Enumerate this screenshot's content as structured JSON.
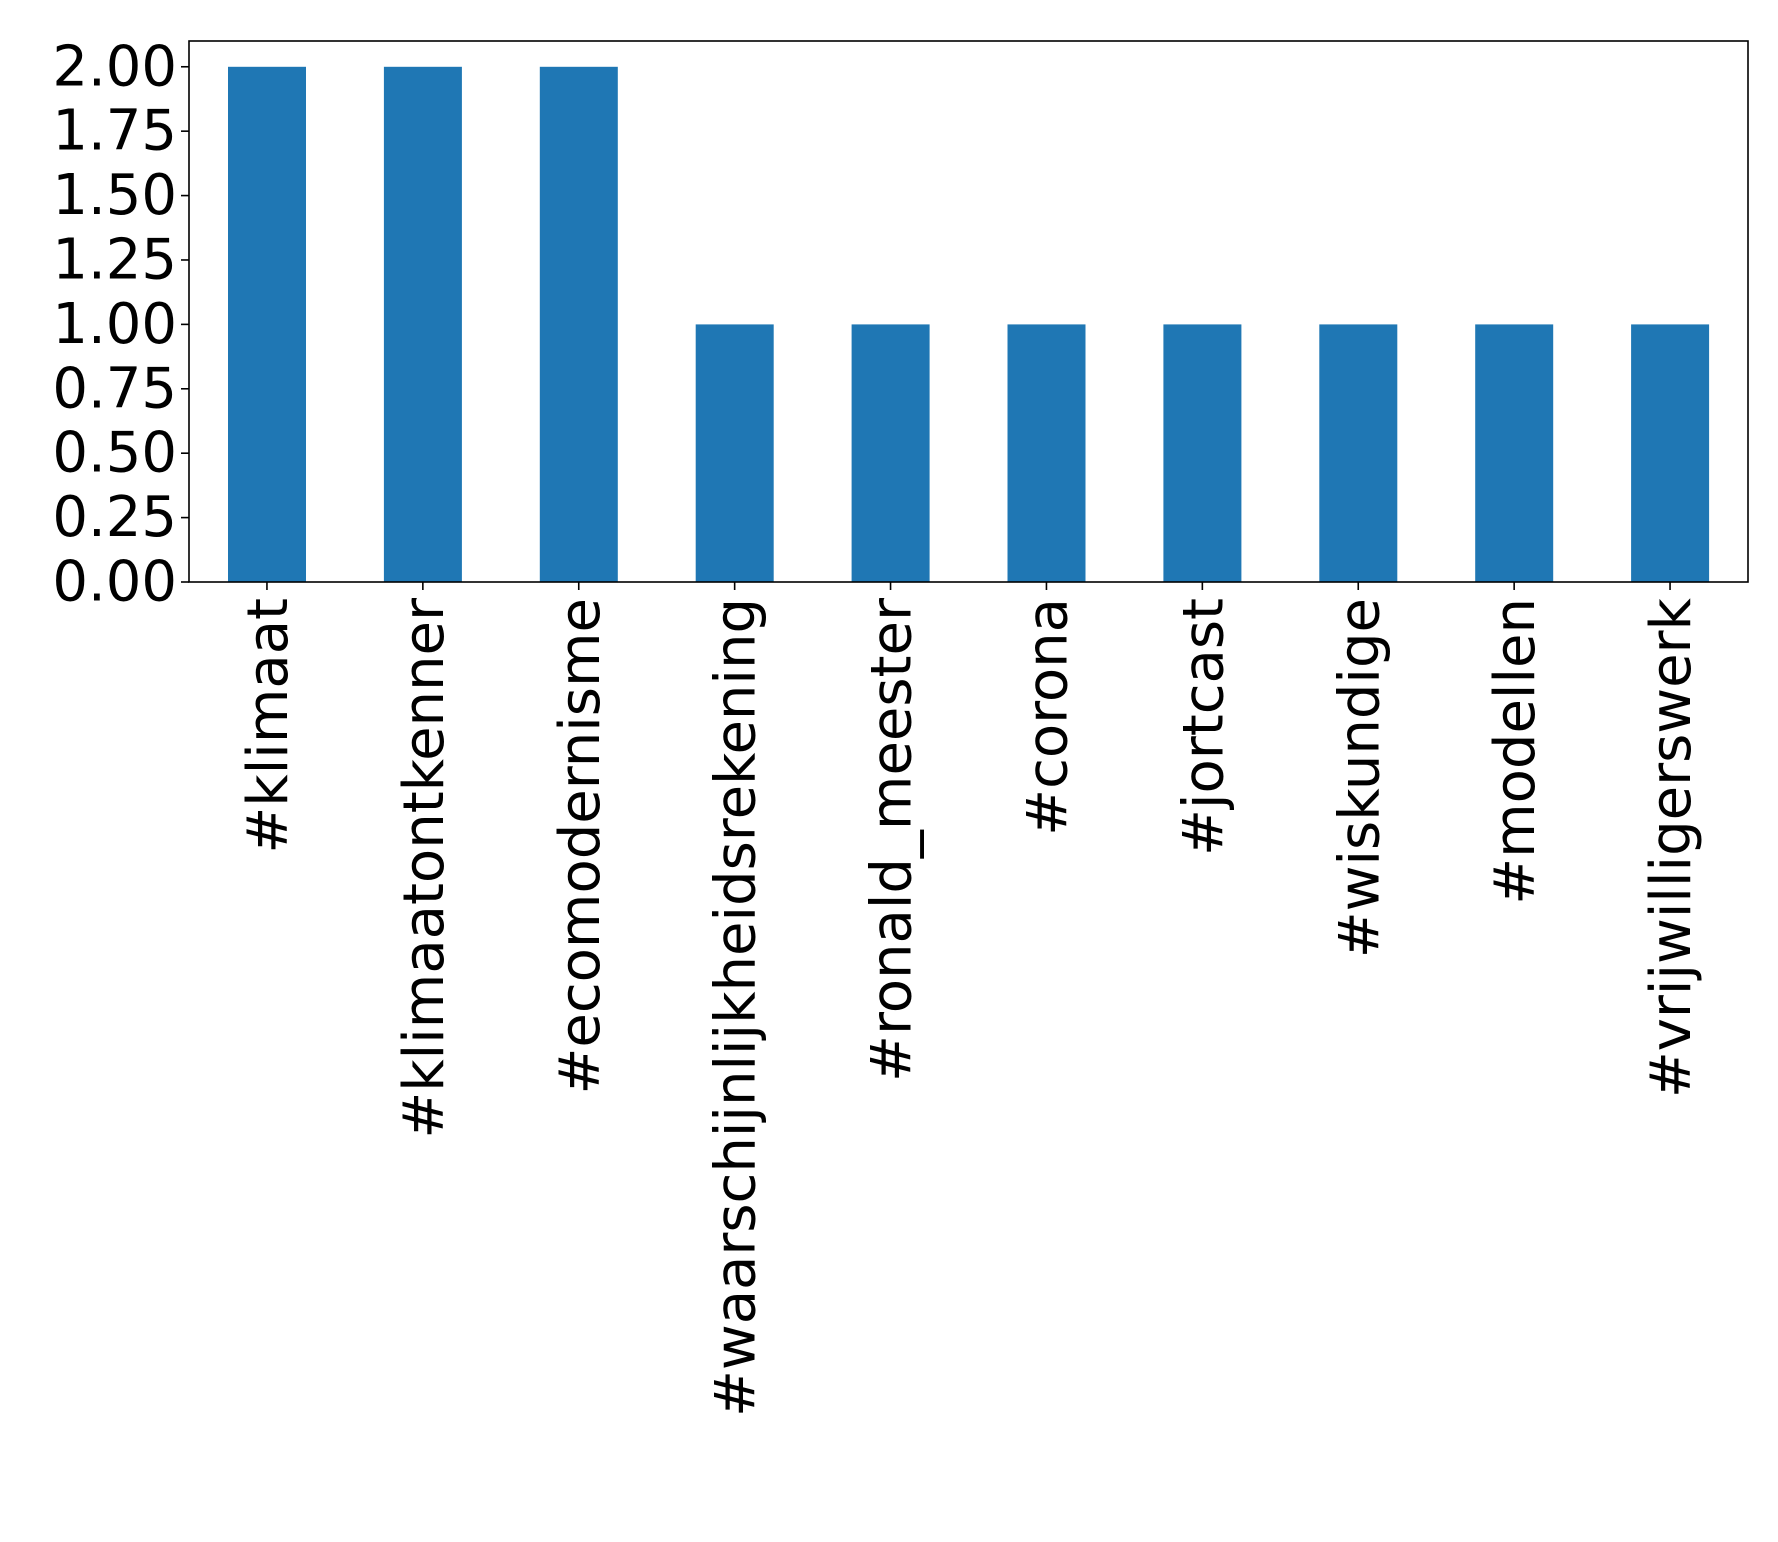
{
  "chart_data": {
    "type": "bar",
    "categories": [
      "#klimaat",
      "#klimaatontkenner",
      "#ecomodernisme",
      "#waarschijnlijkheidsrekening",
      "#ronald_meester",
      "#corona",
      "#jortcast",
      "#wiskundige",
      "#modellen",
      "#vrijwilligerswerk"
    ],
    "values": [
      2,
      2,
      2,
      1,
      1,
      1,
      1,
      1,
      1,
      1
    ],
    "ylim": [
      0,
      2.1
    ],
    "yticks": [
      0.0,
      0.25,
      0.5,
      0.75,
      1.0,
      1.25,
      1.5,
      1.75,
      2.0
    ],
    "ytick_labels": [
      "0.00",
      "0.25",
      "0.50",
      "0.75",
      "1.00",
      "1.25",
      "1.50",
      "1.75",
      "2.00"
    ],
    "title": "",
    "xlabel": "",
    "ylabel": "",
    "grid": false,
    "legend": "none",
    "bar_color": "#1f77b4"
  }
}
